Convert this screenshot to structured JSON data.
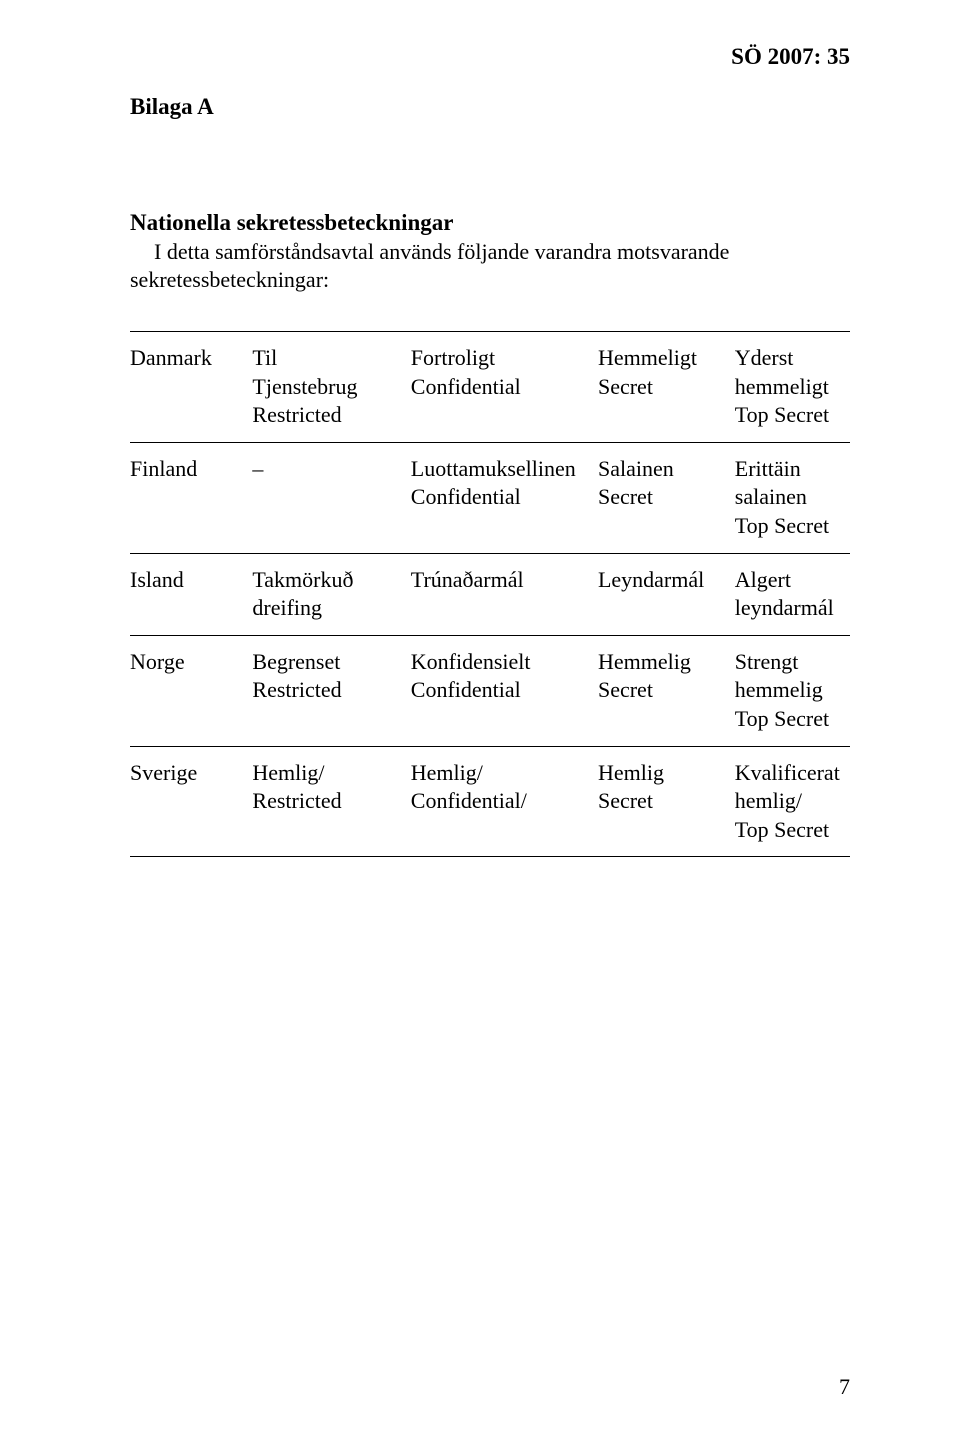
{
  "header": {
    "right": "SÖ 2007: 35"
  },
  "bilaga": "Bilaga A",
  "section_title": "Nationella sekretessbeteckningar",
  "intro": "I detta samförståndsavtal används följande varandra motsvarande sekretessbeteckningar:",
  "rows": [
    {
      "c1": "Danmark",
      "c2": "Til\nTjenstebrug\nRestricted",
      "c3": "Fortroligt\nConfidential",
      "c4": "Hemmeligt\nSecret",
      "c5": "Yderst\nhemmeligt\nTop Secret"
    },
    {
      "c1": "Finland",
      "c2": "–",
      "c3": "Luottamuksellinen\nConfidential",
      "c4": "Salainen\nSecret",
      "c5": "Erittäin\nsalainen\nTop Secret"
    },
    {
      "c1": "Island",
      "c2": "Takmörkuð\ndreifing",
      "c3": "Trúnaðarmál",
      "c4": "Leyndarmál",
      "c5": "Algert\nleyndarmál"
    },
    {
      "c1": "Norge",
      "c2": "Begrenset\nRestricted",
      "c3": "Konfidensielt\nConfidential",
      "c4": "Hemmelig\nSecret",
      "c5": "Strengt\nhemmelig\nTop Secret"
    },
    {
      "c1": "Sverige",
      "c2": "Hemlig/\nRestricted",
      "c3": "Hemlig/\nConfidential/",
      "c4": "Hemlig\nSecret",
      "c5": "Kvalificerat\nhemlig/\nTop Secret"
    }
  ],
  "page_number": "7"
}
